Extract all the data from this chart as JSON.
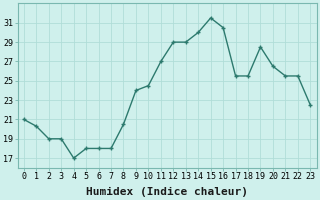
{
  "x": [
    0,
    1,
    2,
    3,
    4,
    5,
    6,
    7,
    8,
    9,
    10,
    11,
    12,
    13,
    14,
    15,
    16,
    17,
    18,
    19,
    20,
    21,
    22,
    23
  ],
  "y": [
    21,
    20.3,
    19,
    19,
    17,
    18,
    18,
    18,
    20.5,
    24,
    24.5,
    27,
    29,
    29,
    30,
    31.5,
    30.5,
    25.5,
    25.5,
    28.5,
    26.5,
    25.5,
    25.5,
    22.5
  ],
  "line_color": "#2d7a6e",
  "marker": "+",
  "marker_color": "#2d7a6e",
  "bg_color": "#cff0ec",
  "grid_color": "#b0ddd8",
  "xlabel": "Humidex (Indice chaleur)",
  "yticks": [
    17,
    19,
    21,
    23,
    25,
    27,
    29,
    31
  ],
  "xticks": [
    0,
    1,
    2,
    3,
    4,
    5,
    6,
    7,
    8,
    9,
    10,
    11,
    12,
    13,
    14,
    15,
    16,
    17,
    18,
    19,
    20,
    21,
    22,
    23
  ],
  "xlim": [
    -0.5,
    23.5
  ],
  "ylim": [
    16.0,
    33.0
  ],
  "xlabel_fontsize": 8,
  "tick_fontsize": 6,
  "linewidth": 1.0
}
